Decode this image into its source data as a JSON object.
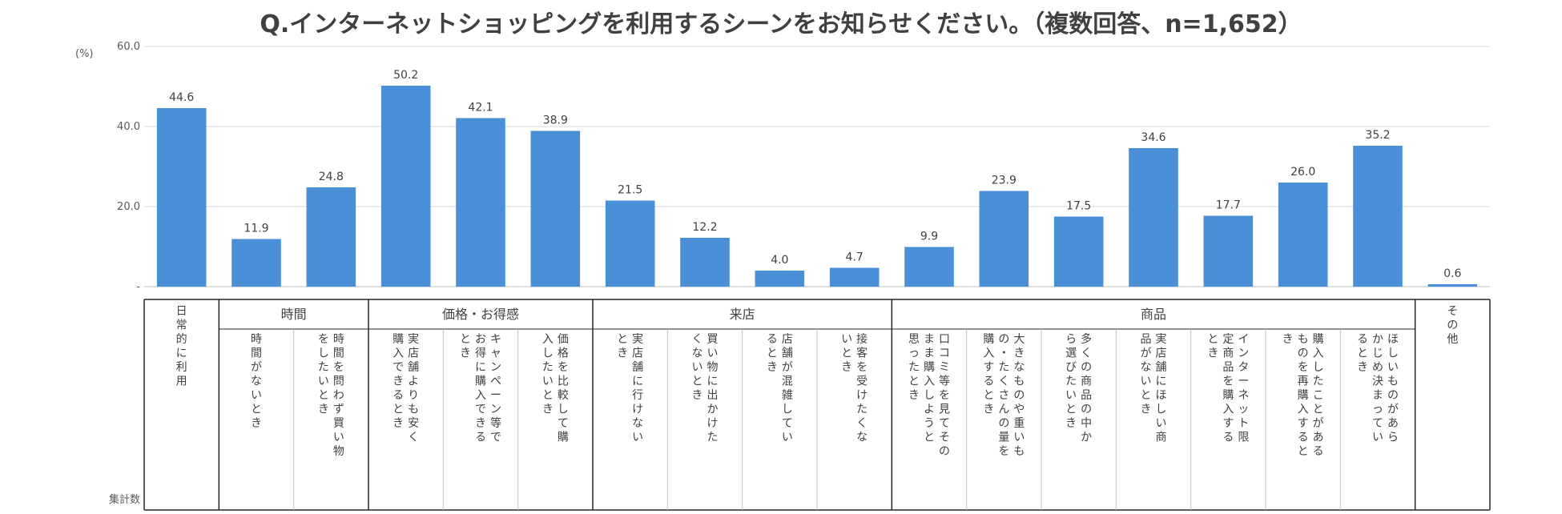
{
  "chart_data": {
    "type": "bar",
    "title": "Q.インターネットショッピングを利用するシーンをお知らせください。（複数回答、n=1,652）",
    "y_unit": "(%)",
    "y_ticks": [
      "-",
      "20.0",
      "40.0",
      "60.0"
    ],
    "ylim": [
      0,
      60
    ],
    "grid": true,
    "color": "#4a90d9",
    "row_label": "集計数",
    "groups": [
      {
        "label": "",
        "span": 1
      },
      {
        "label": "時間",
        "span": 2
      },
      {
        "label": "価格・お得感",
        "span": 3
      },
      {
        "label": "来店",
        "span": 4
      },
      {
        "label": "商品",
        "span": 7
      },
      {
        "label": "",
        "span": 1
      }
    ],
    "categories": [
      {
        "lines": [
          "日常的に利用"
        ],
        "top": true
      },
      {
        "lines": [
          "時間がないとき"
        ]
      },
      {
        "lines": [
          "時間を問わず買い物",
          "をしたいとき"
        ]
      },
      {
        "lines": [
          "実店舗よりも安く",
          "購入できるとき"
        ]
      },
      {
        "lines": [
          "キャンペーン等で",
          "お得に購入できる",
          "とき"
        ]
      },
      {
        "lines": [
          "価格を比較して購",
          "入したいとき"
        ]
      },
      {
        "lines": [
          "実店舗に行けない",
          "とき"
        ]
      },
      {
        "lines": [
          "買い物に出かけた",
          "くないとき"
        ]
      },
      {
        "lines": [
          "店舗が混雑してい",
          "るとき"
        ]
      },
      {
        "lines": [
          "接客を受けたくな",
          "いとき"
        ]
      },
      {
        "lines": [
          "口コミ等を見てその",
          "まま購入しようと",
          "思ったとき"
        ]
      },
      {
        "lines": [
          "大きなものや重いも",
          "の・たくさんの量を",
          "購入するとき"
        ]
      },
      {
        "lines": [
          "多くの商品の中か",
          "ら選びたいとき"
        ]
      },
      {
        "lines": [
          "実店舗にほしい商",
          "品がないとき"
        ]
      },
      {
        "lines": [
          "インターネット限",
          "定商品を購入する",
          "とき"
        ]
      },
      {
        "lines": [
          "購入したことがある",
          "ものを再購入すると",
          "き"
        ]
      },
      {
        "lines": [
          "ほしいものがあら",
          "かじめ決まってい",
          "るとき"
        ]
      },
      {
        "lines": [
          "その他"
        ],
        "top": true
      }
    ],
    "values": [
      44.6,
      11.9,
      24.8,
      50.2,
      42.1,
      38.9,
      21.5,
      12.2,
      4.0,
      4.7,
      9.9,
      23.9,
      17.5,
      34.6,
      17.7,
      26.0,
      35.2,
      0.6
    ],
    "value_labels": [
      "44.6",
      "11.9",
      "24.8",
      "50.2",
      "42.1",
      "38.9",
      "21.5",
      "12.2",
      "4.0",
      "4.7",
      "9.9",
      "23.9",
      "17.5",
      "34.6",
      "17.7",
      "26.0",
      "35.2",
      "0.6"
    ]
  }
}
